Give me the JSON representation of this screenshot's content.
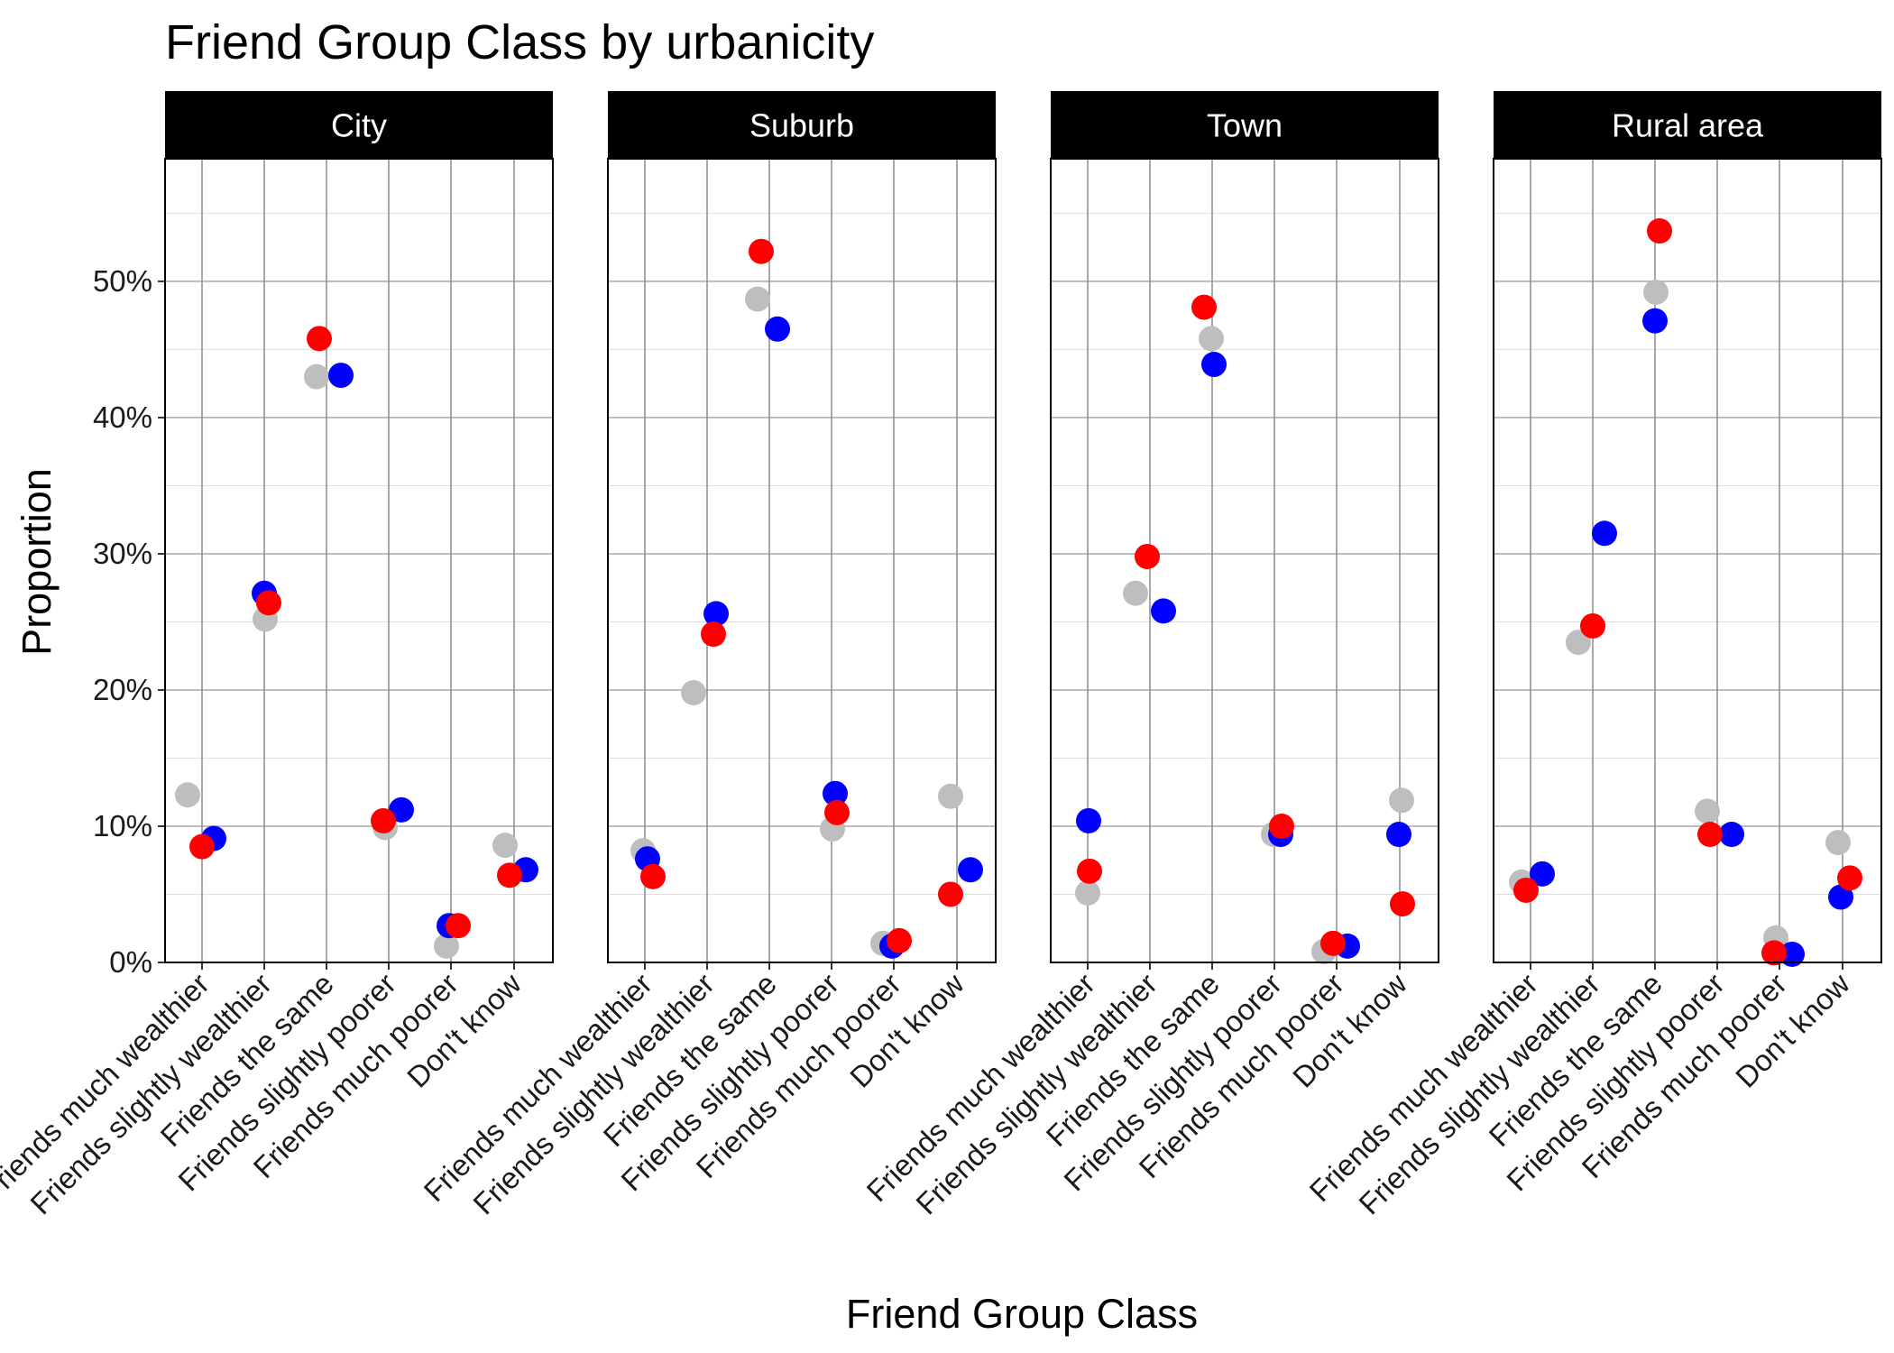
{
  "chart_data": {
    "type": "scatter",
    "title": "Friend Group Class by urbanicity",
    "xlabel": "Friend Group Class",
    "ylabel": "Proportion",
    "ylim": [
      0,
      0.59
    ],
    "yticks": [
      0,
      0.1,
      0.2,
      0.3,
      0.4,
      0.5
    ],
    "ytick_labels": [
      "0%",
      "10%",
      "20%",
      "30%",
      "40%",
      "50%"
    ],
    "grid": true,
    "legend": "none",
    "categories": [
      "Friends much wealthier",
      "Friends slightly wealthier",
      "Friends the same",
      "Friends slightly poorer",
      "Friends much poorer",
      "Don't know"
    ],
    "panels": [
      {
        "label": "City",
        "series": [
          {
            "color": "#bebebe",
            "values": [
              0.123,
              0.252,
              0.43,
              0.099,
              0.012,
              0.086
            ]
          },
          {
            "color": "#0000ff",
            "values": [
              0.091,
              0.271,
              0.431,
              0.112,
              0.027,
              0.068
            ]
          },
          {
            "color": "#ff0000",
            "values": [
              0.085,
              0.264,
              0.458,
              0.104,
              0.027,
              0.064
            ]
          }
        ]
      },
      {
        "label": "Suburb",
        "series": [
          {
            "color": "#bebebe",
            "values": [
              0.082,
              0.198,
              0.487,
              0.098,
              0.014,
              0.122
            ]
          },
          {
            "color": "#0000ff",
            "values": [
              0.076,
              0.256,
              0.465,
              0.124,
              0.012,
              0.068
            ]
          },
          {
            "color": "#ff0000",
            "values": [
              0.063,
              0.241,
              0.522,
              0.11,
              0.016,
              0.05
            ]
          }
        ]
      },
      {
        "label": "Town",
        "series": [
          {
            "color": "#bebebe",
            "values": [
              0.051,
              0.271,
              0.458,
              0.094,
              0.008,
              0.119
            ]
          },
          {
            "color": "#0000ff",
            "values": [
              0.104,
              0.258,
              0.439,
              0.094,
              0.012,
              0.094
            ]
          },
          {
            "color": "#ff0000",
            "values": [
              0.067,
              0.298,
              0.481,
              0.1,
              0.014,
              0.043
            ]
          }
        ]
      },
      {
        "label": "Rural area",
        "series": [
          {
            "color": "#bebebe",
            "values": [
              0.059,
              0.235,
              0.492,
              0.111,
              0.018,
              0.088
            ]
          },
          {
            "color": "#0000ff",
            "values": [
              0.065,
              0.315,
              0.471,
              0.094,
              0.006,
              0.048
            ]
          },
          {
            "color": "#ff0000",
            "values": [
              0.053,
              0.247,
              0.537,
              0.094,
              0.007,
              0.062
            ]
          }
        ]
      }
    ]
  }
}
